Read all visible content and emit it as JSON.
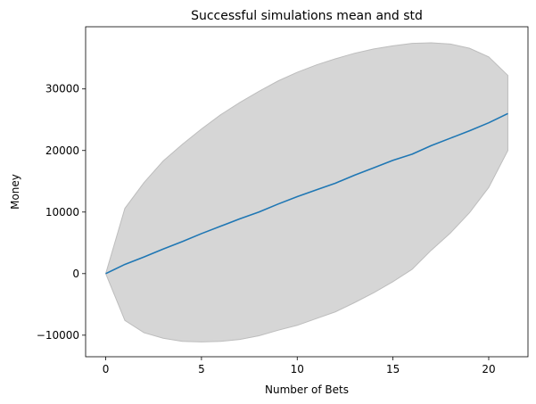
{
  "chart_data": {
    "type": "line",
    "title": "Successful simulations mean and std",
    "xlabel": "Number of Bets",
    "ylabel": "Money",
    "xlim": [
      -1.05,
      22.05
    ],
    "ylim": [
      -13500,
      40100
    ],
    "xticks": [
      0,
      5,
      10,
      15,
      20
    ],
    "yticks": [
      -10000,
      0,
      10000,
      20000,
      30000
    ],
    "grid": false,
    "x": [
      0,
      1,
      2,
      3,
      4,
      5,
      6,
      7,
      8,
      9,
      10,
      11,
      12,
      13,
      14,
      15,
      16,
      17,
      18,
      19,
      20,
      21
    ],
    "series": [
      {
        "role": "mean",
        "color": "#1f77b4",
        "values": [
          0,
          1500,
          2700,
          4000,
          5200,
          6500,
          7700,
          8900,
          10000,
          11300,
          12500,
          13600,
          14700,
          16000,
          17200,
          18400,
          19400,
          20800,
          22000,
          23200,
          24500,
          26000
        ]
      },
      {
        "role": "band",
        "color": "#d6d6d6",
        "edge_color": "#bdbdbd",
        "upper": [
          0,
          10600,
          14800,
          18300,
          21000,
          23500,
          25800,
          27800,
          29600,
          31300,
          32700,
          33900,
          34900,
          35800,
          36500,
          37000,
          37400,
          37500,
          37300,
          36600,
          35200,
          32200
        ],
        "lower": [
          0,
          -7600,
          -9600,
          -10500,
          -11000,
          -11100,
          -11000,
          -10700,
          -10100,
          -9200,
          -8400,
          -7300,
          -6200,
          -4700,
          -3100,
          -1300,
          700,
          3800,
          6600,
          9900,
          14000,
          20000
        ]
      }
    ]
  }
}
